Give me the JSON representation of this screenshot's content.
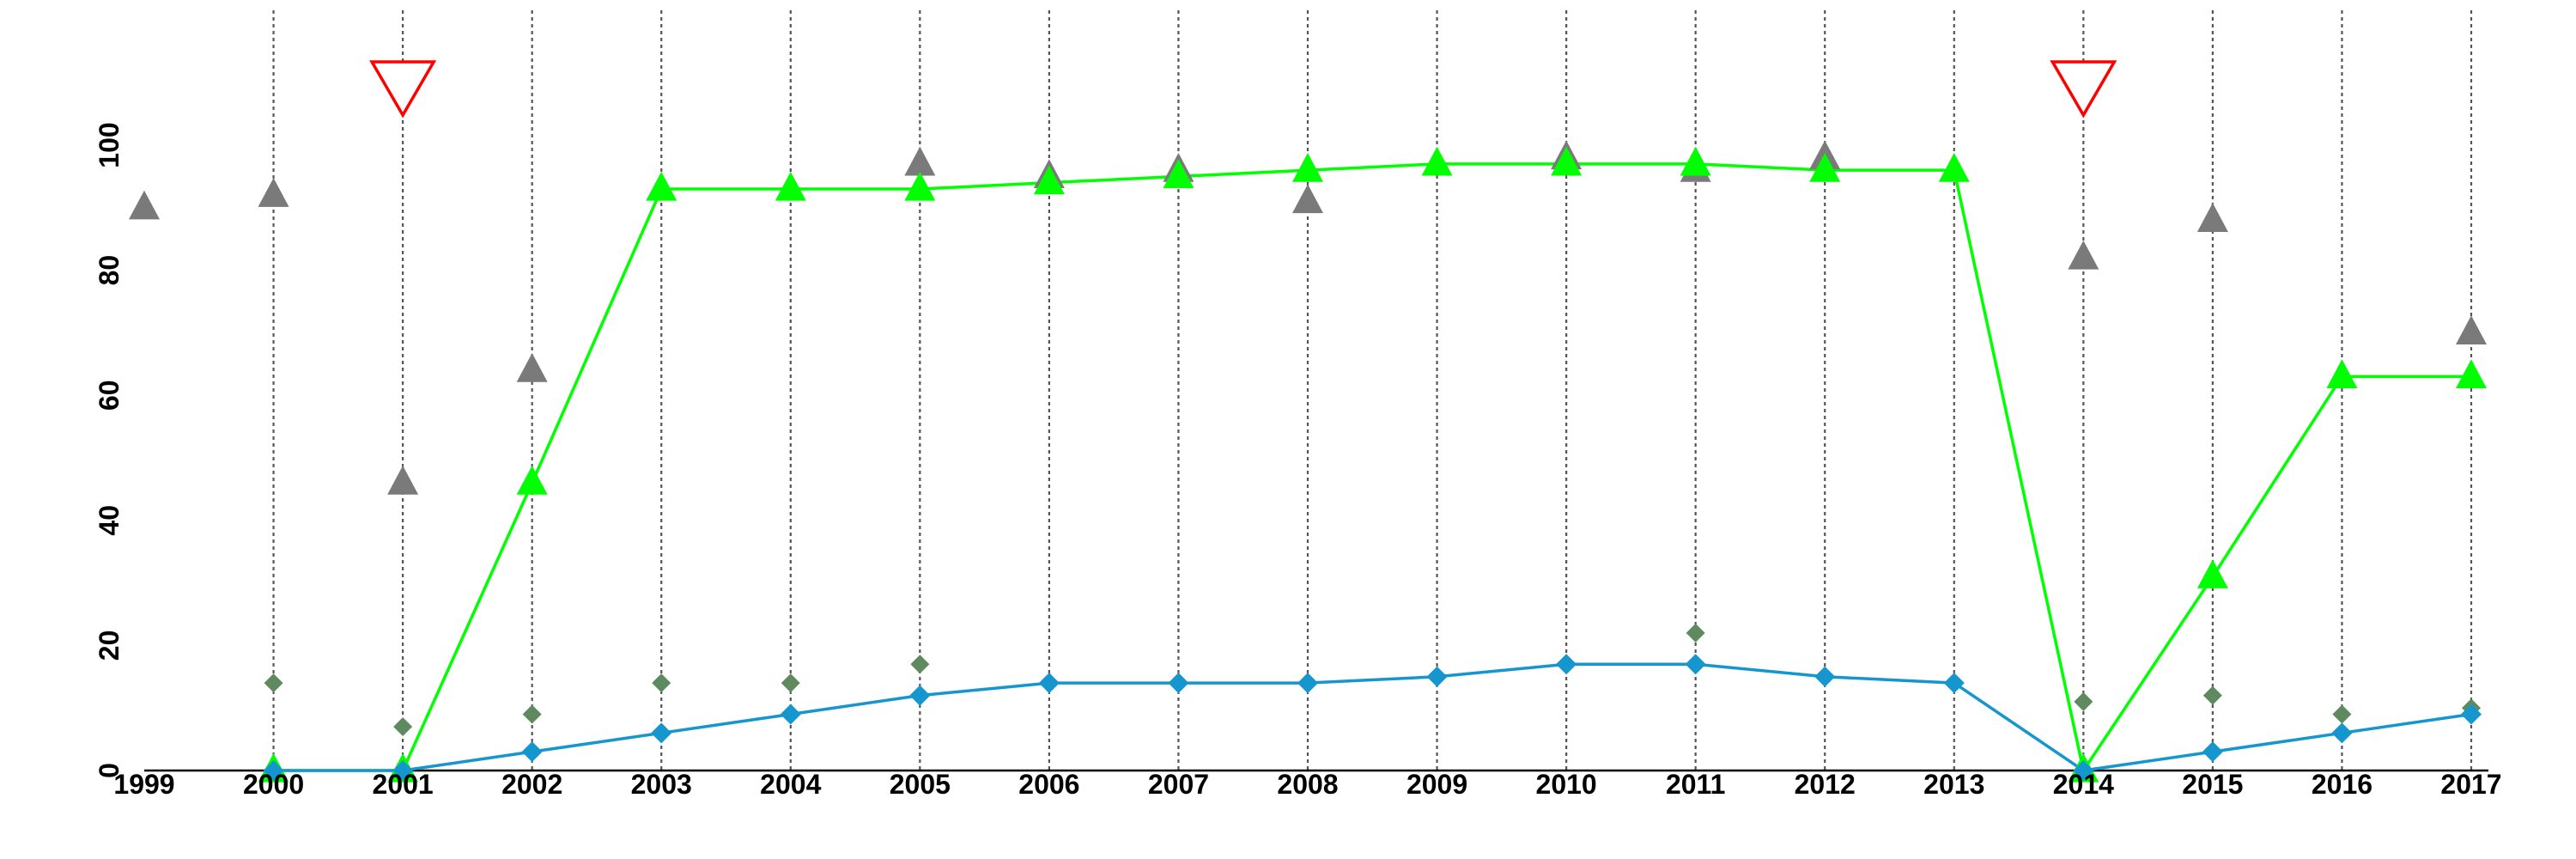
{
  "chart_data": {
    "type": "line",
    "title": "",
    "xlabel": "",
    "ylabel": "",
    "x": [
      1999,
      2000,
      2001,
      2002,
      2003,
      2004,
      2005,
      2006,
      2007,
      2008,
      2009,
      2010,
      2011,
      2012,
      2013,
      2014,
      2015,
      2016,
      2017
    ],
    "xlim": [
      1999,
      2017
    ],
    "ylim": [
      0,
      110
    ],
    "yticks": [
      0,
      20,
      40,
      60,
      80,
      100
    ],
    "grid": "vertical dashed lines at each year",
    "series": [
      {
        "marker": "triangle",
        "color": "#00ff00",
        "connected": true,
        "points": [
          [
            2000,
            0
          ],
          [
            2001,
            0
          ],
          [
            2002,
            46
          ],
          [
            2003,
            93
          ],
          [
            2004,
            93
          ],
          [
            2005,
            93
          ],
          [
            2006,
            94
          ],
          [
            2007,
            95
          ],
          [
            2008,
            96
          ],
          [
            2009,
            97
          ],
          [
            2010,
            97
          ],
          [
            2011,
            97
          ],
          [
            2012,
            96
          ],
          [
            2013,
            96
          ],
          [
            2014,
            0
          ],
          [
            2015,
            31
          ],
          [
            2016,
            63
          ],
          [
            2017,
            63
          ]
        ]
      },
      {
        "marker": "diamond",
        "color": "#1696cf",
        "connected": true,
        "points": [
          [
            2000,
            0
          ],
          [
            2001,
            0
          ],
          [
            2002,
            3
          ],
          [
            2003,
            6
          ],
          [
            2004,
            9
          ],
          [
            2005,
            12
          ],
          [
            2006,
            14
          ],
          [
            2007,
            14
          ],
          [
            2008,
            14
          ],
          [
            2009,
            15
          ],
          [
            2010,
            17
          ],
          [
            2011,
            17
          ],
          [
            2012,
            15
          ],
          [
            2013,
            14
          ],
          [
            2014,
            0
          ],
          [
            2015,
            3
          ],
          [
            2016,
            6
          ],
          [
            2017,
            9
          ]
        ]
      },
      {
        "marker": "triangle",
        "color": "#7a7a7a",
        "connected": false,
        "points": [
          [
            1999,
            90
          ],
          [
            2000,
            92
          ],
          [
            2001,
            46
          ],
          [
            2002,
            64
          ],
          [
            2005,
            97
          ],
          [
            2006,
            95
          ],
          [
            2007,
            96
          ],
          [
            2008,
            91
          ],
          [
            2010,
            98
          ],
          [
            2011,
            96
          ],
          [
            2012,
            98
          ],
          [
            2014,
            82
          ],
          [
            2015,
            88
          ],
          [
            2017,
            70
          ]
        ]
      },
      {
        "marker": "diamond",
        "color": "#5f8a60",
        "connected": false,
        "points": [
          [
            2000,
            14
          ],
          [
            2001,
            7
          ],
          [
            2002,
            9
          ],
          [
            2003,
            14
          ],
          [
            2004,
            14
          ],
          [
            2005,
            17
          ],
          [
            2011,
            22
          ],
          [
            2014,
            11
          ],
          [
            2015,
            12
          ],
          [
            2016,
            9
          ],
          [
            2017,
            10
          ]
        ]
      }
    ],
    "event_markers": {
      "marker": "inverted-triangle-outline",
      "color": "#ff0000",
      "x": [
        2001,
        2014
      ]
    }
  }
}
